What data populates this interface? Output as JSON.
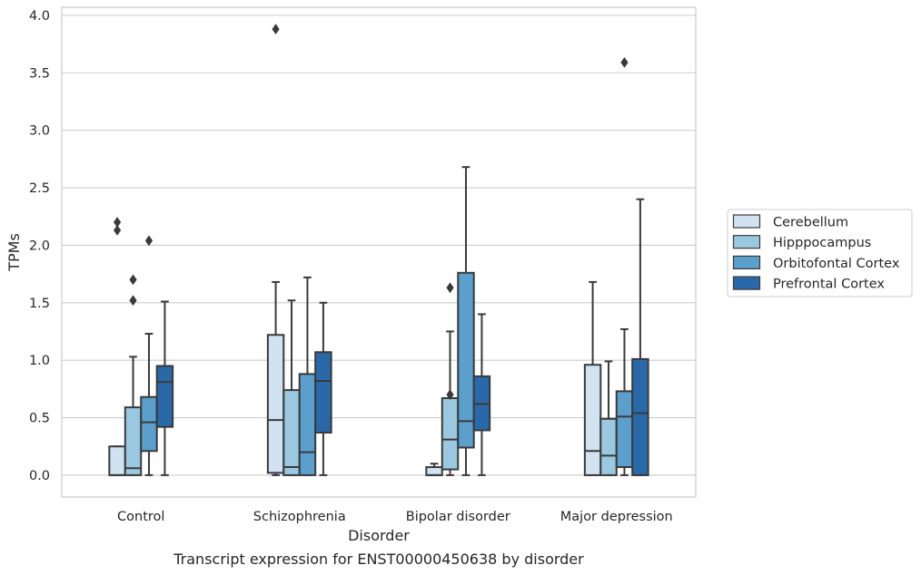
{
  "chart_data": {
    "type": "boxplot",
    "xlabel": "Disorder",
    "ylabel": "TPMs",
    "caption": "Transcript expression for ENST00000450638 by disorder",
    "categories": [
      "Control",
      "Schizophrenia",
      "Bipolar disorder",
      "Major depression"
    ],
    "ylim": [
      -0.19,
      4.07
    ],
    "yticks": [
      "0.0",
      "0.5",
      "1.0",
      "1.5",
      "2.0",
      "2.5",
      "3.0",
      "3.5",
      "4.0"
    ],
    "ytick_values": [
      0.0,
      0.5,
      1.0,
      1.5,
      2.0,
      2.5,
      3.0,
      3.5,
      4.0
    ],
    "grid": "horizontal",
    "legend_position": "right",
    "series": [
      {
        "name": "Cerebellum",
        "color": "#d1e2f1",
        "boxes": [
          {
            "whislo": 0.0,
            "q1": 0.0,
            "med": 0.0,
            "q3": 0.25,
            "whishi": 0.25,
            "fliers": [
              2.13,
              2.2
            ]
          },
          {
            "whislo": 0.0,
            "q1": 0.02,
            "med": 0.48,
            "q3": 1.22,
            "whishi": 1.68,
            "fliers": [
              3.88
            ]
          },
          {
            "whislo": 0.0,
            "q1": 0.0,
            "med": 0.0,
            "q3": 0.07,
            "whishi": 0.1,
            "fliers": []
          },
          {
            "whislo": 0.0,
            "q1": 0.0,
            "med": 0.21,
            "q3": 0.96,
            "whishi": 1.68,
            "fliers": []
          }
        ]
      },
      {
        "name": "Hipppocampus",
        "color": "#9ac8e0",
        "boxes": [
          {
            "whislo": 0.0,
            "q1": 0.0,
            "med": 0.06,
            "q3": 0.59,
            "whishi": 1.03,
            "fliers": [
              1.52,
              1.7
            ]
          },
          {
            "whislo": 0.0,
            "q1": 0.0,
            "med": 0.07,
            "q3": 0.74,
            "whishi": 1.52,
            "fliers": []
          },
          {
            "whislo": 0.0,
            "q1": 0.05,
            "med": 0.31,
            "q3": 0.67,
            "whishi": 1.25,
            "fliers": [
              0.7,
              1.63
            ]
          },
          {
            "whislo": 0.0,
            "q1": 0.0,
            "med": 0.17,
            "q3": 0.49,
            "whishi": 0.99,
            "fliers": []
          }
        ]
      },
      {
        "name": "Orbitofontal Cortex",
        "color": "#5b9fcc",
        "boxes": [
          {
            "whislo": 0.0,
            "q1": 0.21,
            "med": 0.46,
            "q3": 0.68,
            "whishi": 1.23,
            "fliers": [
              2.04
            ]
          },
          {
            "whislo": 0.0,
            "q1": 0.0,
            "med": 0.2,
            "q3": 0.88,
            "whishi": 1.72,
            "fliers": []
          },
          {
            "whislo": 0.0,
            "q1": 0.24,
            "med": 0.47,
            "q3": 1.76,
            "whishi": 2.68,
            "fliers": []
          },
          {
            "whislo": 0.0,
            "q1": 0.07,
            "med": 0.51,
            "q3": 0.73,
            "whishi": 1.27,
            "fliers": [
              3.59
            ]
          }
        ]
      },
      {
        "name": "Prefrontal Cortex",
        "color": "#2a69a9",
        "boxes": [
          {
            "whislo": 0.0,
            "q1": 0.42,
            "med": 0.81,
            "q3": 0.95,
            "whishi": 1.51,
            "fliers": []
          },
          {
            "whislo": 0.0,
            "q1": 0.37,
            "med": 0.82,
            "q3": 1.07,
            "whishi": 1.5,
            "fliers": []
          },
          {
            "whislo": 0.0,
            "q1": 0.39,
            "med": 0.62,
            "q3": 0.86,
            "whishi": 1.4,
            "fliers": []
          },
          {
            "whislo": 0.0,
            "q1": 0.0,
            "med": 0.54,
            "q3": 1.01,
            "whishi": 2.4,
            "fliers": []
          }
        ]
      }
    ]
  }
}
